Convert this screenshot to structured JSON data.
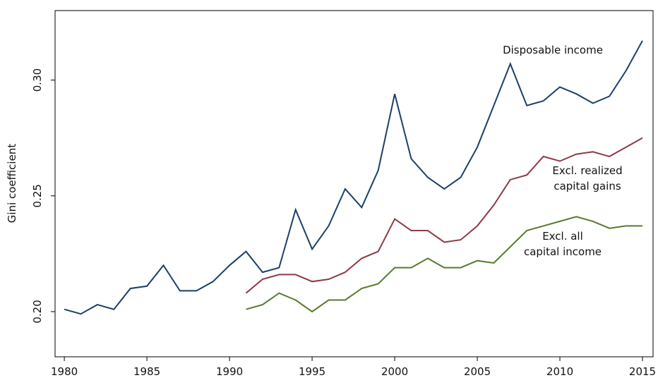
{
  "chart_data": {
    "type": "line",
    "y_label": "Gini coefficient",
    "x": [
      1980,
      1981,
      1982,
      1983,
      1984,
      1985,
      1986,
      1987,
      1988,
      1989,
      1990,
      1991,
      1992,
      1993,
      1994,
      1995,
      1996,
      1997,
      1998,
      1999,
      2000,
      2001,
      2002,
      2003,
      2004,
      2005,
      2006,
      2007,
      2008,
      2009,
      2010,
      2011,
      2012,
      2013,
      2014,
      2015
    ],
    "series": [
      {
        "name": "Disposable income",
        "label_lines": [
          "Disposable income"
        ],
        "color": "#1b3f68",
        "values": [
          0.201,
          0.199,
          0.203,
          0.201,
          0.21,
          0.211,
          0.22,
          0.209,
          0.209,
          0.213,
          0.22,
          0.226,
          0.217,
          0.219,
          0.244,
          0.227,
          0.237,
          0.253,
          0.245,
          0.261,
          0.294,
          0.266,
          0.258,
          0.253,
          0.258,
          0.271,
          0.289,
          0.307,
          0.289,
          0.291,
          0.297,
          0.294,
          0.29,
          0.293,
          0.304,
          0.317
        ]
      },
      {
        "name": "Excl. realized capital gains",
        "label_lines": [
          "Excl. realized",
          "capital gains"
        ],
        "color": "#8e3a45",
        "values": [
          null,
          null,
          null,
          null,
          null,
          null,
          null,
          null,
          null,
          null,
          null,
          0.208,
          0.214,
          0.216,
          0.216,
          0.213,
          0.214,
          0.217,
          0.223,
          0.226,
          0.24,
          0.235,
          0.235,
          0.23,
          0.231,
          0.237,
          0.246,
          0.257,
          0.259,
          0.267,
          0.265,
          0.268,
          0.269,
          0.267,
          0.271,
          0.275
        ]
      },
      {
        "name": "Excl. all capital income",
        "label_lines": [
          "Excl. all",
          "capital income"
        ],
        "color": "#587a2c",
        "values": [
          null,
          null,
          null,
          null,
          null,
          null,
          null,
          null,
          null,
          null,
          null,
          0.201,
          0.203,
          0.208,
          0.205,
          0.2,
          0.205,
          0.205,
          0.21,
          0.212,
          0.219,
          0.219,
          0.223,
          0.219,
          0.219,
          0.222,
          0.221,
          0.228,
          0.235,
          0.237,
          0.239,
          0.241,
          0.239,
          0.236,
          0.237,
          0.237
        ]
      }
    ],
    "xlim": [
      1979.44,
      2015.64
    ],
    "xticks": [
      1980,
      1985,
      1990,
      1995,
      2000,
      2005,
      2010,
      2015
    ],
    "ylim": [
      0.1805,
      0.33
    ],
    "yticks": [
      {
        "value": 0.2,
        "label": "0.20"
      },
      {
        "value": 0.25,
        "label": "0.25"
      },
      {
        "value": 0.3,
        "label": "0.30"
      }
    ],
    "grid": false
  }
}
